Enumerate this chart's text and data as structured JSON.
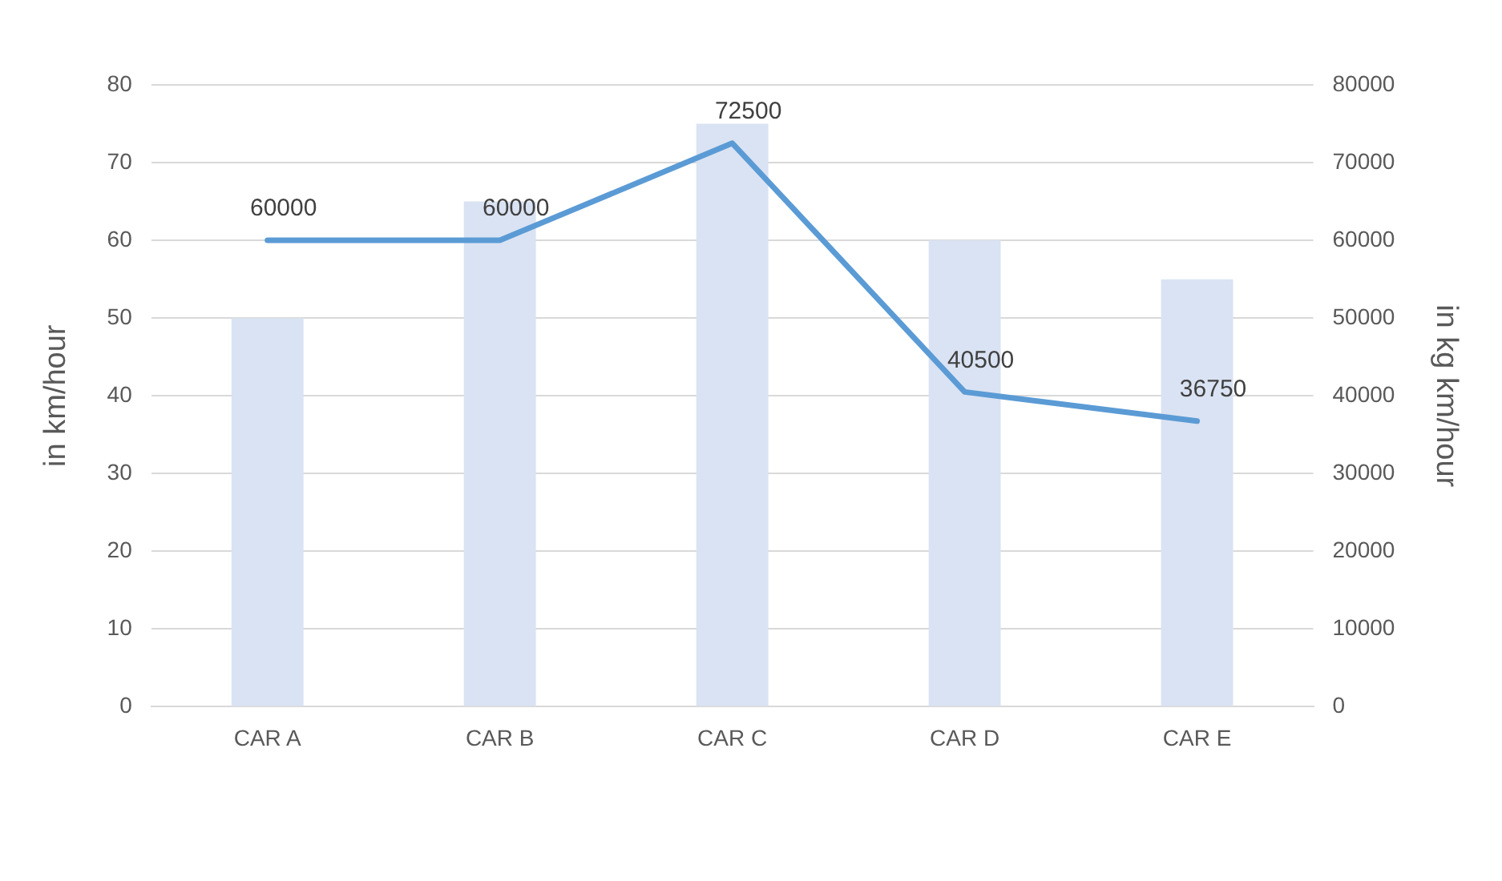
{
  "chart_data": {
    "type": "bar",
    "ylabel": "in km/hour",
    "y2label": "in kg km/hour",
    "categories": [
      "CAR A",
      "CAR B",
      "CAR C",
      "CAR D",
      "CAR E"
    ],
    "series": [
      {
        "color": "#dae3f3",
        "values": [
          50,
          65,
          75,
          60,
          55
        ]
      },
      {
        "type": "line",
        "axis": "y2",
        "color": "#5b9bd5",
        "values": [
          60000,
          60000,
          72500,
          40500,
          36750
        ],
        "value_labels": [
          "60000",
          "60000",
          "72500",
          "40500",
          "36750"
        ]
      }
    ],
    "ylim": [
      0,
      80
    ],
    "yticks": [
      0,
      10,
      20,
      30,
      40,
      50,
      60,
      70,
      80
    ],
    "y2lim": [
      0,
      80000
    ],
    "y2ticks": [
      0,
      10000,
      20000,
      30000,
      40000,
      50000,
      60000,
      70000,
      80000
    ],
    "grid": "y",
    "legend": false,
    "marker": "none",
    "line_style": "solid"
  }
}
